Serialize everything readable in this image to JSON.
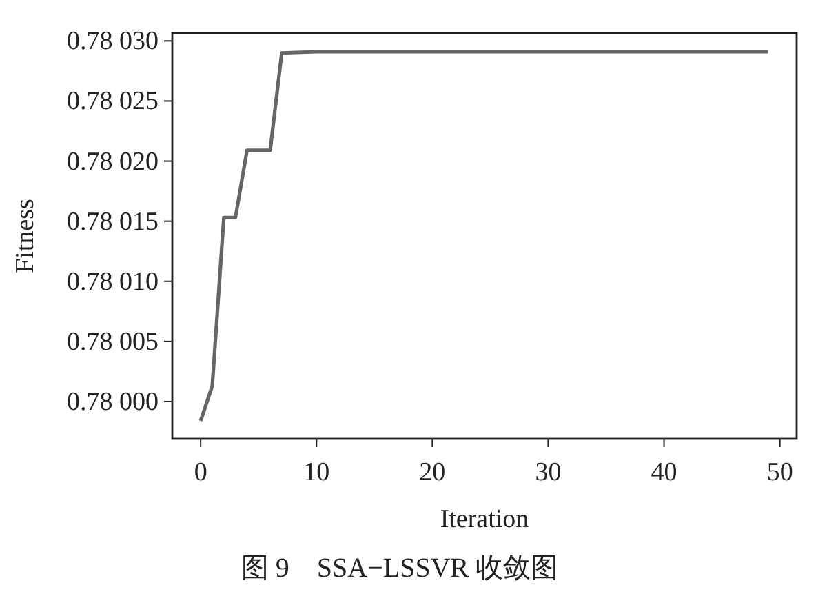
{
  "chart_data": {
    "type": "line",
    "title": "图 9　SSA−LSSVR 收敛图",
    "xlabel": "Iteration",
    "ylabel": "Fitness",
    "xlim": [
      -2.45,
      51.45
    ],
    "ylim": [
      0.779969,
      0.7803065
    ],
    "xticks": [
      0,
      10,
      20,
      30,
      40,
      50
    ],
    "yticks": [
      {
        "value": 0.78,
        "label": "0.78 000"
      },
      {
        "value": 0.78005,
        "label": "0.78 005"
      },
      {
        "value": 0.7801,
        "label": "0.78 010"
      },
      {
        "value": 0.78015,
        "label": "0.78 015"
      },
      {
        "value": 0.7802,
        "label": "0.78 020"
      },
      {
        "value": 0.78025,
        "label": "0.78 025"
      },
      {
        "value": 0.7803,
        "label": "0.78 030"
      }
    ],
    "grid": false,
    "marker": "none",
    "line_style": "solid",
    "series": [
      {
        "color": "#666666",
        "x": [
          0,
          1,
          2,
          3,
          4,
          5,
          6,
          7,
          10,
          49
        ],
        "values": [
          0.779984,
          0.780013,
          0.780153,
          0.780153,
          0.780209,
          0.780209,
          0.780209,
          0.78029,
          0.780291,
          0.780291
        ]
      }
    ]
  }
}
